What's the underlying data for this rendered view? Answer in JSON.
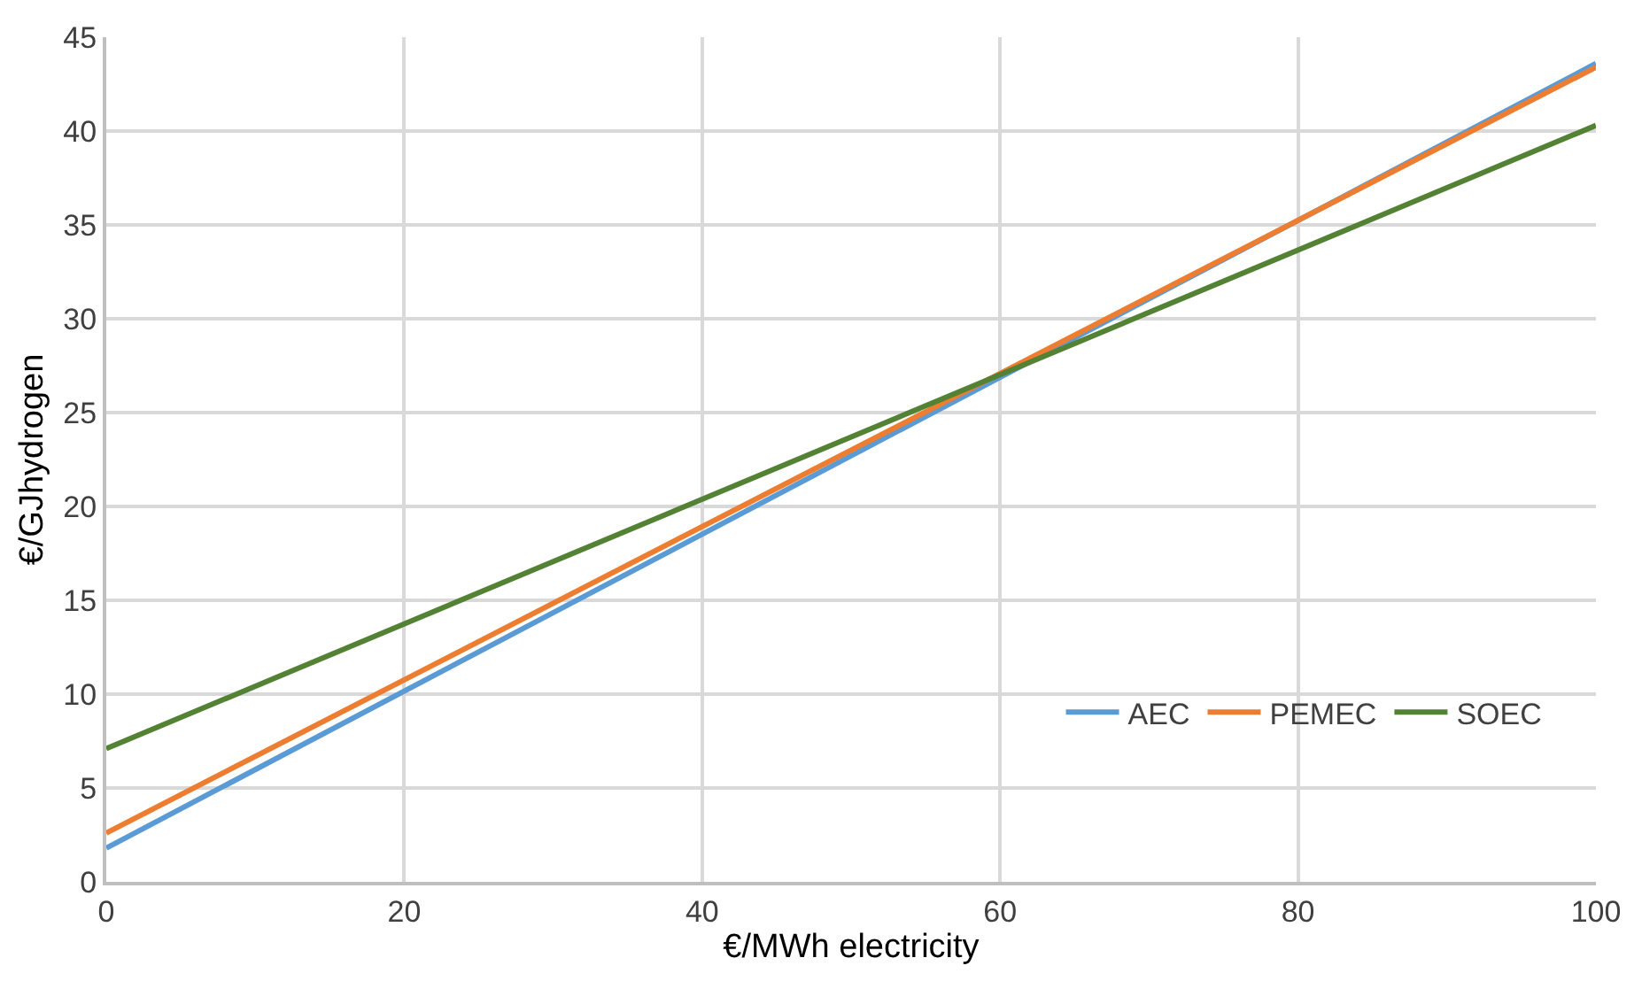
{
  "chart_data": {
    "type": "line",
    "xlabel": "€/MWh electricity",
    "ylabel": "€/GJhydrogen",
    "x": [
      0,
      100
    ],
    "xlim": [
      0,
      100
    ],
    "xticks": [
      0,
      20,
      40,
      60,
      80,
      100
    ],
    "ylim": [
      0,
      45
    ],
    "yticks": [
      0,
      5,
      10,
      15,
      20,
      25,
      30,
      35,
      40,
      45
    ],
    "grid": true,
    "legend": "bottom right",
    "marker": "none",
    "line_style": "solid",
    "series": [
      {
        "name": "AEC",
        "color": "#5b9bd5",
        "values": [
          1.8,
          43.6
        ]
      },
      {
        "name": "PEMEC",
        "color": "#ed7d31",
        "values": [
          2.6,
          43.4
        ]
      },
      {
        "name": "SOEC",
        "color": "#548235",
        "values": [
          7.1,
          40.3
        ]
      }
    ]
  }
}
